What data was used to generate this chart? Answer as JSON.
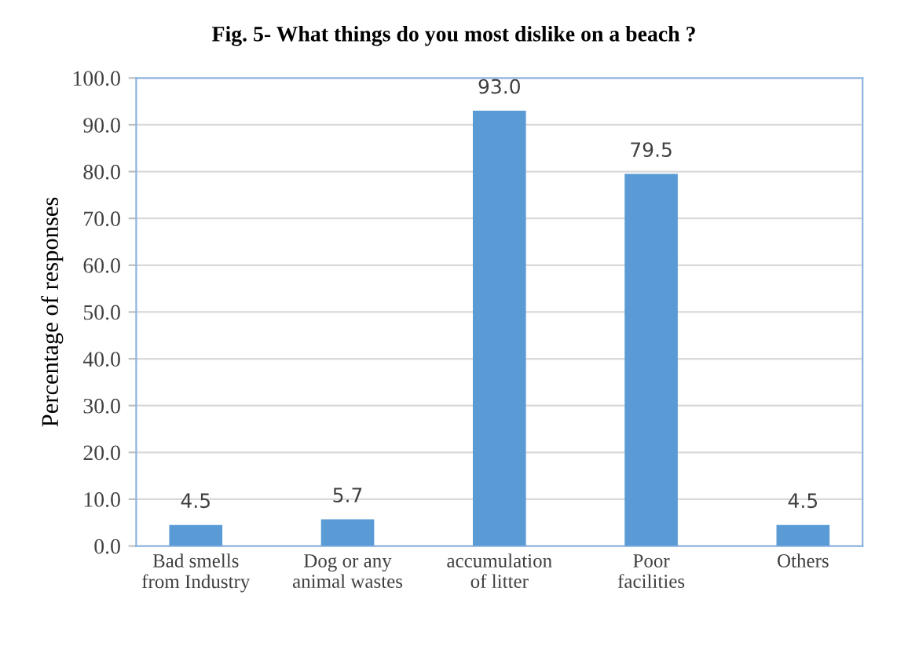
{
  "chart_data": {
    "type": "bar",
    "title": "Fig. 5- What things do you most dislike on a beach ?",
    "ylabel": "Percentage of responses",
    "categories": [
      "Bad smells from Industry",
      "Dog or any animal wastes",
      "accumulation of litter",
      "Poor facilities",
      "Others"
    ],
    "values": [
      4.5,
      5.7,
      93.0,
      79.5,
      4.5
    ],
    "color": "#5b9bd5",
    "ylim": [
      0,
      100
    ],
    "yticks": [
      {
        "value": 0,
        "label": "0.0"
      },
      {
        "value": 10,
        "label": "10.0"
      },
      {
        "value": 20,
        "label": "20.0"
      },
      {
        "value": 30,
        "label": "30.0"
      },
      {
        "value": 40,
        "label": "40.0"
      },
      {
        "value": 50,
        "label": "50.0"
      },
      {
        "value": 60,
        "label": "60.0"
      },
      {
        "value": 70,
        "label": "70.0"
      },
      {
        "value": 80,
        "label": "80.0"
      },
      {
        "value": 90,
        "label": "90.0"
      },
      {
        "value": 100,
        "label": "100.0"
      }
    ],
    "value_labels": [
      "4.5",
      "5.7",
      "93.0",
      "79.5",
      "4.5"
    ],
    "grid": "y"
  }
}
